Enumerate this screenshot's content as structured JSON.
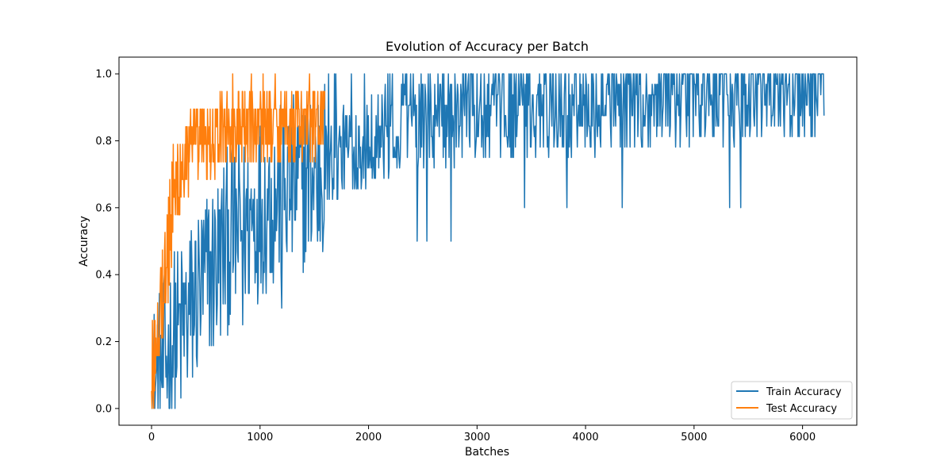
{
  "chart_data": {
    "type": "line",
    "title": "Evolution of Accuracy per Batch",
    "xlabel": "Batches",
    "ylabel": "Accuracy",
    "xlim": [
      -300,
      6500
    ],
    "ylim": [
      -0.05,
      1.05
    ],
    "xticks": [
      0,
      1000,
      2000,
      3000,
      4000,
      5000,
      6000
    ],
    "yticks": [
      0.0,
      0.2,
      0.4,
      0.6,
      0.8,
      1.0
    ],
    "ytick_labels": [
      "0.0",
      "0.2",
      "0.4",
      "0.6",
      "0.8",
      "1.0"
    ],
    "grid": false,
    "legend_position": "lower-right",
    "series": [
      {
        "name": "Train Accuracy",
        "color": "#1f77b4",
        "x_range": [
          0,
          6200
        ],
        "trend": [
          [
            0,
            0.03
          ],
          [
            50,
            0.08
          ],
          [
            100,
            0.12
          ],
          [
            200,
            0.2
          ],
          [
            300,
            0.25
          ],
          [
            400,
            0.32
          ],
          [
            500,
            0.38
          ],
          [
            600,
            0.44
          ],
          [
            700,
            0.5
          ],
          [
            800,
            0.53
          ],
          [
            900,
            0.56
          ],
          [
            1000,
            0.6
          ],
          [
            1200,
            0.64
          ],
          [
            1400,
            0.68
          ],
          [
            1600,
            0.72
          ],
          [
            1800,
            0.78
          ],
          [
            2000,
            0.81
          ],
          [
            2500,
            0.84
          ],
          [
            3000,
            0.87
          ],
          [
            3500,
            0.89
          ],
          [
            4000,
            0.9
          ],
          [
            4500,
            0.91
          ],
          [
            5000,
            0.92
          ],
          [
            5500,
            0.93
          ],
          [
            6200,
            0.94
          ]
        ],
        "dips": [
          [
            840,
            0.25
          ],
          [
            1200,
            0.3
          ],
          [
            1530,
            0.5
          ],
          [
            2450,
            0.5
          ],
          [
            2540,
            0.5
          ],
          [
            2760,
            0.5
          ],
          [
            3440,
            0.6
          ],
          [
            3830,
            0.6
          ],
          [
            4340,
            0.6
          ],
          [
            5330,
            0.6
          ],
          [
            5430,
            0.6
          ]
        ]
      },
      {
        "name": "Test Accuracy",
        "color": "#ff7f0e",
        "x_range": [
          0,
          1600
        ],
        "trend": [
          [
            0,
            0.1
          ],
          [
            50,
            0.25
          ],
          [
            100,
            0.35
          ],
          [
            150,
            0.48
          ],
          [
            200,
            0.6
          ],
          [
            250,
            0.7
          ],
          [
            300,
            0.74
          ],
          [
            400,
            0.78
          ],
          [
            500,
            0.8
          ],
          [
            700,
            0.83
          ],
          [
            1000,
            0.85
          ],
          [
            1300,
            0.86
          ],
          [
            1600,
            0.86
          ]
        ],
        "peaks": [
          [
            750,
            1.0
          ],
          [
            920,
            1.0
          ],
          [
            1030,
            1.0
          ],
          [
            1140,
            1.0
          ]
        ]
      }
    ]
  }
}
